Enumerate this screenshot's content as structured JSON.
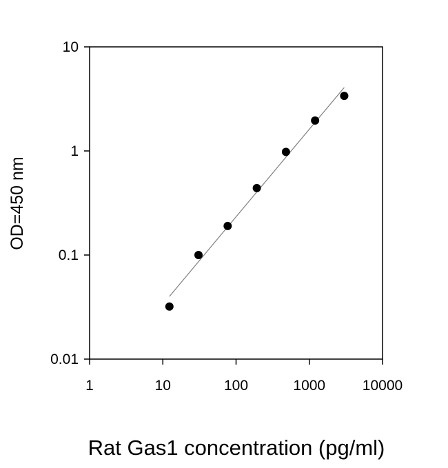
{
  "chart_data": {
    "type": "scatter",
    "title": "",
    "xlabel": "Rat Gas1 concentration (pg/ml)",
    "ylabel": "OD=450 nm",
    "x_scale": "log",
    "y_scale": "log",
    "xlim": [
      1,
      10000
    ],
    "ylim": [
      0.01,
      10
    ],
    "x_ticks": [
      "1",
      "10",
      "100",
      "1000",
      "10000"
    ],
    "y_ticks": [
      "0.01",
      "0.1",
      "1",
      "10"
    ],
    "grid": false,
    "points": {
      "x": [
        12.3,
        30.7,
        76.8,
        192,
        480,
        1200,
        3000
      ],
      "y": [
        0.032,
        0.1,
        0.19,
        0.44,
        0.98,
        1.96,
        3.38
      ]
    },
    "fit_line": {
      "x": [
        12.3,
        3000
      ],
      "y": [
        0.04,
        4.07
      ]
    },
    "colors": {
      "points": "#000000",
      "fit_line": "#808080",
      "axes": "#000000"
    }
  }
}
